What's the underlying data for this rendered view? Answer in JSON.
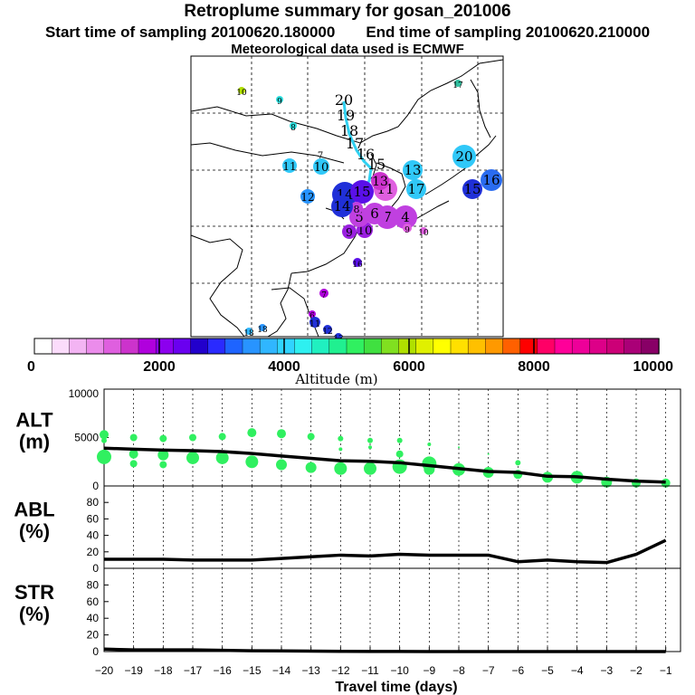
{
  "header": {
    "title": "Retroplume summary for gosan_201006",
    "start": "Start time of sampling 20100620.180000",
    "end": "End time of sampling 20100620.210000",
    "met": "Meteorological data used is ECMWF"
  },
  "colorbar": {
    "label": "Altitude (m)",
    "ticks": [
      "0",
      "2000",
      "4000",
      "6000",
      "8000",
      "10000"
    ],
    "colors": [
      "#ffffff",
      "#fbdcfb",
      "#f3b4f3",
      "#eb8ceb",
      "#df5fdf",
      "#cc33cc",
      "#b000dd",
      "#8c00ee",
      "#6a00f0",
      "#2200cc",
      "#2a2aff",
      "#1e64ff",
      "#2894ff",
      "#30b6ff",
      "#30d4ff",
      "#2ef0f0",
      "#20f0c0",
      "#20f090",
      "#30f060",
      "#40e040",
      "#80e020",
      "#b0e000",
      "#e0f000",
      "#ffff00",
      "#ffe000",
      "#ffc000",
      "#ff9900",
      "#ff6000",
      "#ff0000",
      "#ff0066",
      "#ff0099",
      "#ee0099",
      "#dd0088",
      "#cc0077",
      "#aa0077",
      "#880066"
    ]
  },
  "map_points": [
    {
      "label": "20",
      "color": "#30c8f8",
      "size": 13
    },
    {
      "label": "16",
      "color": "#2a6cf0",
      "size": 12
    },
    {
      "label": "15",
      "color": "#2030d8",
      "size": 11
    },
    {
      "label": "13",
      "color": "#30c8f8",
      "size": 11
    },
    {
      "label": "17",
      "color": "#30c8f8",
      "size": 11
    },
    {
      "label": "10",
      "color": "#30c8f8",
      "size": 9
    },
    {
      "label": "11",
      "color": "#30c8f8",
      "size": 8
    },
    {
      "label": "12",
      "color": "#2894ff",
      "size": 8
    },
    {
      "label": "9",
      "color": "#9a20e0",
      "size": 8
    },
    {
      "label": "10",
      "color": "#9a20e0",
      "size": 9
    },
    {
      "label": "4",
      "color": "#c040e0",
      "size": 13
    },
    {
      "label": "7",
      "color": "#c040e0",
      "size": 13
    },
    {
      "label": "6",
      "color": "#c040e0",
      "size": 12
    },
    {
      "label": "5",
      "color": "#c040e0",
      "size": 11
    },
    {
      "label": "14",
      "color": "#2030d8",
      "size": 14
    },
    {
      "label": "15",
      "color": "#5a10e8",
      "size": 13
    },
    {
      "label": "11",
      "color": "#df5fdf",
      "size": 13
    },
    {
      "label": "13",
      "color": "#cc33cc",
      "size": 10
    },
    {
      "label": "8",
      "color": "#c040e0",
      "size": 7
    },
    {
      "label": "9",
      "color": "#df5fdf",
      "size": 5
    },
    {
      "label": "10",
      "color": "#df5fdf",
      "size": 4
    },
    {
      "label": "14",
      "color": "#2030d8",
      "size": 12
    },
    {
      "label": "7",
      "color": "#b000dd",
      "size": 5
    },
    {
      "label": "6",
      "color": "#b000dd",
      "size": 4
    },
    {
      "label": "16",
      "color": "#5a10e8",
      "size": 5
    },
    {
      "label": "11",
      "color": "#2030d8",
      "size": 6
    },
    {
      "label": "12",
      "color": "#2030d8",
      "size": 5
    },
    {
      "label": "13",
      "color": "#2030d8",
      "size": 4
    },
    {
      "label": "18",
      "color": "#2894ff",
      "size": 4
    },
    {
      "label": "18",
      "color": "#30b6ff",
      "size": 4
    },
    {
      "label": "17",
      "color": "#30c0a0",
      "size": 4
    },
    {
      "label": "10",
      "color": "#b0e000",
      "size": 4
    },
    {
      "label": "9",
      "color": "#2ee0e0",
      "size": 4
    },
    {
      "label": "8",
      "color": "#2ee0e0",
      "size": 4
    }
  ],
  "map_track_labels": [
    "20",
    "19",
    "18",
    "17",
    "16",
    "15",
    "7"
  ],
  "chart_data": [
    {
      "type": "line",
      "panel": "ALT",
      "ylabel": "ALT\n(m)",
      "ylabel_lines": [
        "ALT",
        "(m)"
      ],
      "ylim": [
        0,
        10000
      ],
      "yticks": [
        "0",
        "5000",
        "10000"
      ],
      "xlim": [
        -20,
        -0.5
      ],
      "x": [
        -20,
        -19,
        -18,
        -17,
        -16,
        -15,
        -14,
        -13,
        -12,
        -11,
        -10,
        -9,
        -8,
        -7,
        -6,
        -5,
        -4,
        -3,
        -2,
        -1
      ],
      "y": [
        3900,
        3800,
        3700,
        3650,
        3550,
        3350,
        3100,
        2850,
        2600,
        2550,
        2400,
        2100,
        1800,
        1500,
        1400,
        1000,
        950,
        700,
        500,
        400
      ],
      "scatter_color": "#30f060",
      "scatter": [
        {
          "x": -20,
          "y": 5300
        },
        {
          "x": -20,
          "y": 4700
        },
        {
          "x": -20,
          "y": 3000
        },
        {
          "x": -19,
          "y": 5000
        },
        {
          "x": -19,
          "y": 3300
        },
        {
          "x": -19,
          "y": 2300
        },
        {
          "x": -18,
          "y": 4900
        },
        {
          "x": -18,
          "y": 3200
        },
        {
          "x": -18,
          "y": 2200
        },
        {
          "x": -17,
          "y": 5000
        },
        {
          "x": -17,
          "y": 2900
        },
        {
          "x": -16,
          "y": 5100
        },
        {
          "x": -16,
          "y": 2900
        },
        {
          "x": -15,
          "y": 5500
        },
        {
          "x": -15,
          "y": 2500
        },
        {
          "x": -14,
          "y": 5400
        },
        {
          "x": -14,
          "y": 2200
        },
        {
          "x": -13,
          "y": 5100
        },
        {
          "x": -13,
          "y": 1900
        },
        {
          "x": -12,
          "y": 4900
        },
        {
          "x": -12,
          "y": 3800
        },
        {
          "x": -12,
          "y": 1800
        },
        {
          "x": -11,
          "y": 4700
        },
        {
          "x": -11,
          "y": 4000
        },
        {
          "x": -11,
          "y": 1800
        },
        {
          "x": -10,
          "y": 4700
        },
        {
          "x": -10,
          "y": 3300
        },
        {
          "x": -10,
          "y": 2000
        },
        {
          "x": -9,
          "y": 4300
        },
        {
          "x": -9,
          "y": 2300
        },
        {
          "x": -9,
          "y": 1700
        },
        {
          "x": -8,
          "y": 4000
        },
        {
          "x": -8,
          "y": 1700
        },
        {
          "x": -7,
          "y": 3300
        },
        {
          "x": -7,
          "y": 1400
        },
        {
          "x": -6,
          "y": 2400
        },
        {
          "x": -6,
          "y": 1200
        },
        {
          "x": -5,
          "y": 900
        },
        {
          "x": -4,
          "y": 900
        },
        {
          "x": -3,
          "y": 400
        },
        {
          "x": -2,
          "y": 300
        },
        {
          "x": -1,
          "y": 300
        }
      ],
      "scatter_sizes": [
        5,
        3,
        8,
        4,
        5,
        4,
        4,
        6,
        4,
        4,
        7,
        4,
        7,
        5,
        7,
        5,
        6,
        4,
        6,
        3,
        2,
        7,
        3,
        2,
        7,
        3,
        4,
        8,
        2,
        8,
        6,
        1,
        7,
        1,
        6,
        3,
        5,
        6,
        7,
        6,
        5,
        5
      ]
    },
    {
      "type": "line",
      "panel": "ABL",
      "ylabel_lines": [
        "ABL",
        "(%)"
      ],
      "ylim": [
        0,
        100
      ],
      "yticks": [
        "0",
        "20",
        "40",
        "60",
        "80"
      ],
      "xlim": [
        -20,
        -0.5
      ],
      "x": [
        -20,
        -19,
        -18,
        -17,
        -16,
        -15,
        -14,
        -13,
        -12,
        -11,
        -10,
        -9,
        -8,
        -7,
        -6,
        -5,
        -4,
        -3,
        -2,
        -1
      ],
      "y": [
        11,
        11,
        11,
        10,
        10,
        10,
        12,
        14,
        16,
        15,
        17,
        16,
        16,
        16,
        8,
        10,
        8,
        7,
        17,
        34
      ]
    },
    {
      "type": "line",
      "panel": "STR",
      "ylabel_lines": [
        "STR",
        "(%)"
      ],
      "ylim": [
        0,
        100
      ],
      "yticks": [
        "0",
        "20",
        "40",
        "60",
        "80"
      ],
      "xlim": [
        -20,
        -0.5
      ],
      "x": [
        -20,
        -19,
        -18,
        -17,
        -16,
        -15,
        -14,
        -13,
        -12,
        -11,
        -10,
        -9,
        -8,
        -7,
        -6,
        -5,
        -4,
        -3,
        -2,
        -1
      ],
      "y": [
        3,
        2,
        2,
        2,
        1.5,
        1,
        0.8,
        0.5,
        0.3,
        0.2,
        0.1,
        0,
        0,
        0,
        0,
        0,
        0,
        0,
        0,
        0
      ]
    }
  ],
  "xaxis": {
    "title": "Travel time (days)",
    "ticks": [
      "−20",
      "−19",
      "−18",
      "−17",
      "−16",
      "−15",
      "−14",
      "−13",
      "−12",
      "−11",
      "−10",
      "−9",
      "−8",
      "−7",
      "−6",
      "−5",
      "−4",
      "−3",
      "−2",
      "−1"
    ]
  }
}
